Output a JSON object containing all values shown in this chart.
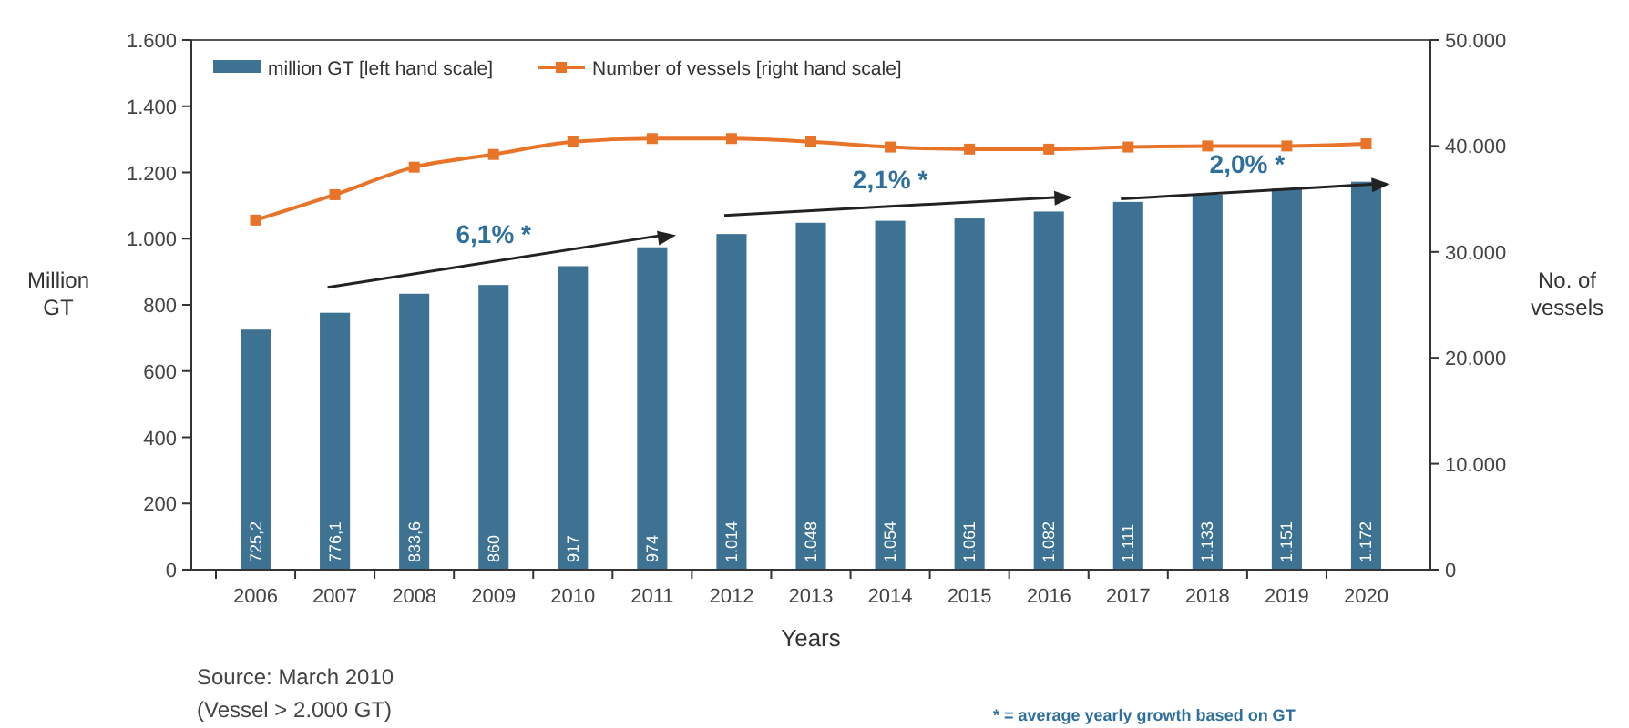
{
  "chart_data": {
    "type": "bar",
    "xlabel": "Years",
    "ylabel": "Million GT",
    "y2label": "No. of vessels",
    "categories": [
      "2006",
      "2007",
      "2008",
      "2009",
      "2010",
      "2011",
      "2012",
      "2013",
      "2014",
      "2015",
      "2016",
      "2017",
      "2018",
      "2019",
      "2020"
    ],
    "series": [
      {
        "name": "million GT [left hand scale]",
        "color": "#3d7293",
        "values": [
          725.2,
          776.1,
          833.6,
          860,
          917,
          974,
          1014,
          1048,
          1054,
          1061,
          1082,
          1111,
          1133,
          1151,
          1172
        ],
        "value_labels": [
          "725,2",
          "776,1",
          "833,6",
          "860",
          "917",
          "974",
          "1.014",
          "1.048",
          "1.054",
          "1.061",
          "1.082",
          "1.111",
          "1.133",
          "1.151",
          "1.172"
        ]
      },
      {
        "name": "Number of vessels [right hand scale]",
        "type": "line",
        "axis": "y2",
        "color": "#e8742a",
        "marker": "square",
        "values": [
          33000,
          35400,
          38000,
          39200,
          40400,
          40700,
          40700,
          40400,
          39900,
          39700,
          39700,
          39900,
          40000,
          40000,
          40200
        ]
      }
    ],
    "ylim": [
      0,
      1600
    ],
    "yticks": [
      0,
      {
        "value": 200,
        "label": "200"
      },
      {
        "value": 400,
        "label": "400"
      },
      {
        "value": 600,
        "label": "600"
      },
      {
        "value": 800,
        "label": "800"
      },
      {
        "value": 1000,
        "label": "1.000"
      },
      {
        "value": 1200,
        "label": "1.200"
      },
      {
        "value": 1400,
        "label": "1.400"
      },
      {
        "value": 1600,
        "label": "1.600"
      }
    ],
    "y2lim": [
      0,
      50000
    ],
    "y2ticks": [
      0,
      {
        "value": 10000,
        "label": "10.000"
      },
      {
        "value": 20000,
        "label": "20.000"
      },
      {
        "value": 30000,
        "label": "30.000"
      },
      {
        "value": 40000,
        "label": "40.000"
      },
      {
        "value": 50000,
        "label": "50.000"
      }
    ],
    "legend": "top left",
    "grid": false,
    "annotations": [
      "6,1% *",
      "2,1% *",
      "2,0% *",
      "Source: March 2010",
      "(Vessel > 2.000 GT)",
      "* = average yearly growth based on GT"
    ]
  }
}
